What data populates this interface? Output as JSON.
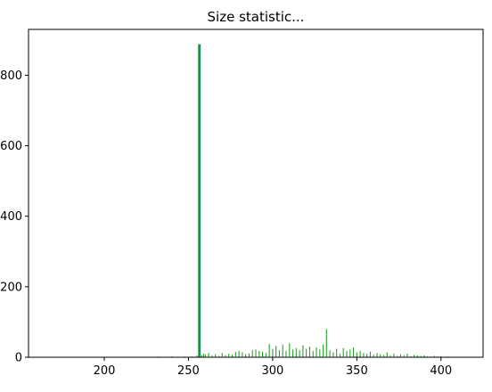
{
  "chart_data": {
    "type": "bar",
    "title": "Size statistic...",
    "xlabel": "",
    "ylabel": "",
    "xlim": [
      155,
      425
    ],
    "ylim": [
      0,
      930
    ],
    "xticks": [
      200,
      250,
      300,
      350,
      400
    ],
    "yticks": [
      0,
      200,
      400,
      600,
      800
    ],
    "grid": false,
    "colors": {
      "primary": "#2ca02c",
      "highlight": "#1f77b4"
    },
    "series": [
      {
        "color": "#2ca02c",
        "x": [
          204,
          229,
          232,
          236,
          240,
          244,
          248,
          252,
          255,
          256,
          257,
          258,
          259,
          260,
          262,
          264,
          266,
          268,
          270,
          272,
          274,
          276,
          278,
          280,
          282,
          284,
          286,
          288,
          290,
          292,
          294,
          296,
          298,
          300,
          302,
          304,
          306,
          308,
          310,
          312,
          314,
          316,
          318,
          320,
          322,
          324,
          326,
          328,
          330,
          332,
          334,
          336,
          338,
          340,
          342,
          344,
          346,
          348,
          350,
          352,
          354,
          356,
          358,
          360,
          362,
          364,
          366,
          368,
          370,
          372,
          374,
          376,
          378,
          380,
          382,
          384,
          386,
          388,
          390,
          392,
          394,
          396,
          398,
          400,
          404,
          408,
          414
        ],
        "values": [
          1,
          1,
          2,
          1,
          2,
          1,
          2,
          3,
          5,
          888,
          888,
          6,
          10,
          8,
          12,
          5,
          9,
          4,
          12,
          6,
          10,
          7,
          15,
          18,
          14,
          9,
          11,
          20,
          22,
          18,
          16,
          12,
          38,
          24,
          32,
          20,
          36,
          18,
          40,
          22,
          26,
          20,
          34,
          24,
          30,
          18,
          28,
          22,
          36,
          80,
          20,
          14,
          24,
          10,
          26,
          18,
          22,
          28,
          14,
          18,
          12,
          10,
          16,
          8,
          12,
          9,
          6,
          14,
          5,
          10,
          4,
          8,
          6,
          10,
          3,
          7,
          5,
          4,
          6,
          3,
          2,
          4,
          2,
          3,
          2,
          1,
          1
        ]
      },
      {
        "color": "#1f77b4",
        "x": [
          256.5
        ],
        "values": [
          888
        ]
      }
    ]
  }
}
